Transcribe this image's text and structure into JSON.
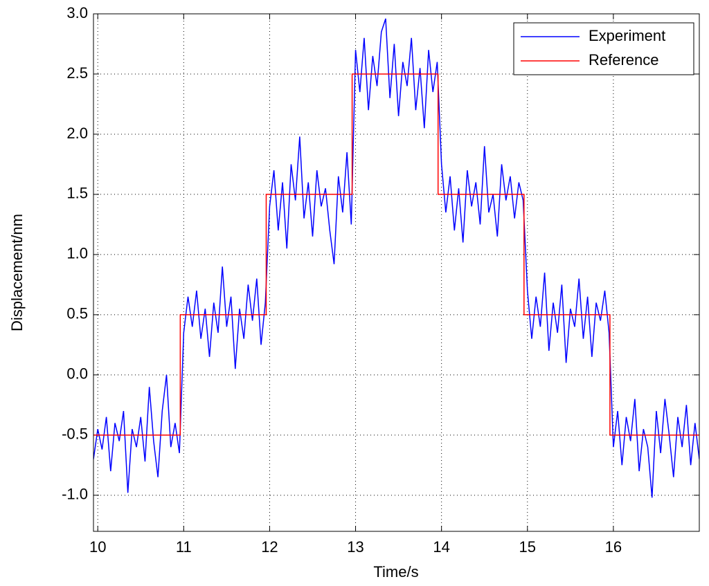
{
  "chart_data": {
    "type": "line",
    "xlabel": "Time/s",
    "ylabel": "Displacement/nm",
    "xlim": [
      9.95,
      17
    ],
    "ylim": [
      -1.3,
      3.0
    ],
    "xticks": [
      10,
      11,
      12,
      13,
      14,
      15,
      16
    ],
    "yticks": [
      {
        "value": -1,
        "label": "-1.0"
      },
      -0.5,
      {
        "value": 0,
        "label": "0.0"
      },
      0.5,
      {
        "value": 1,
        "label": "1.0"
      },
      1.5,
      {
        "value": 2,
        "label": "2.0"
      },
      2.5,
      {
        "value": 3,
        "label": "3.0"
      }
    ],
    "grid": true,
    "legend": "upper right",
    "series": [
      {
        "name": "Experiment",
        "color": "#0000ff",
        "x": [
          9.95,
          10.0,
          10.05,
          10.1,
          10.15,
          10.2,
          10.25,
          10.3,
          10.35,
          10.4,
          10.45,
          10.5,
          10.55,
          10.6,
          10.65,
          10.7,
          10.75,
          10.8,
          10.85,
          10.9,
          10.95,
          11.0,
          11.05,
          11.1,
          11.15,
          11.2,
          11.25,
          11.3,
          11.35,
          11.4,
          11.45,
          11.5,
          11.55,
          11.6,
          11.65,
          11.7,
          11.75,
          11.8,
          11.85,
          11.9,
          11.95,
          12.0,
          12.05,
          12.1,
          12.15,
          12.2,
          12.25,
          12.3,
          12.35,
          12.4,
          12.45,
          12.5,
          12.55,
          12.6,
          12.65,
          12.7,
          12.75,
          12.8,
          12.85,
          12.9,
          12.95,
          13.0,
          13.05,
          13.1,
          13.15,
          13.2,
          13.25,
          13.3,
          13.35,
          13.4,
          13.45,
          13.5,
          13.55,
          13.6,
          13.65,
          13.7,
          13.75,
          13.8,
          13.85,
          13.9,
          13.95,
          14.0,
          14.05,
          14.1,
          14.15,
          14.2,
          14.25,
          14.3,
          14.35,
          14.4,
          14.45,
          14.5,
          14.55,
          14.6,
          14.65,
          14.7,
          14.75,
          14.8,
          14.85,
          14.9,
          14.95,
          15.0,
          15.05,
          15.1,
          15.15,
          15.2,
          15.25,
          15.3,
          15.35,
          15.4,
          15.45,
          15.5,
          15.55,
          15.6,
          15.65,
          15.7,
          15.75,
          15.8,
          15.85,
          15.9,
          15.95,
          16.0,
          16.05,
          16.1,
          16.15,
          16.2,
          16.25,
          16.3,
          16.35,
          16.4,
          16.45,
          16.5,
          16.55,
          16.6,
          16.65,
          16.7,
          16.75,
          16.8,
          16.85,
          16.9,
          16.95,
          17.0
        ],
        "values": [
          -0.7,
          -0.45,
          -0.62,
          -0.35,
          -0.8,
          -0.4,
          -0.55,
          -0.3,
          -0.98,
          -0.45,
          -0.6,
          -0.35,
          -0.72,
          -0.1,
          -0.55,
          -0.85,
          -0.3,
          0.0,
          -0.6,
          -0.4,
          -0.65,
          0.35,
          0.65,
          0.4,
          0.7,
          0.3,
          0.55,
          0.15,
          0.6,
          0.35,
          0.9,
          0.4,
          0.65,
          0.05,
          0.55,
          0.3,
          0.75,
          0.45,
          0.8,
          0.25,
          0.6,
          1.4,
          1.7,
          1.2,
          1.6,
          1.05,
          1.75,
          1.45,
          1.98,
          1.3,
          1.6,
          1.15,
          1.7,
          1.4,
          1.55,
          1.2,
          0.92,
          1.65,
          1.35,
          1.85,
          1.25,
          2.7,
          2.35,
          2.8,
          2.2,
          2.65,
          2.4,
          2.85,
          2.96,
          2.3,
          2.75,
          2.15,
          2.6,
          2.4,
          2.8,
          2.2,
          2.55,
          2.05,
          2.7,
          2.35,
          2.6,
          1.75,
          1.35,
          1.65,
          1.2,
          1.55,
          1.1,
          1.7,
          1.4,
          1.6,
          1.25,
          1.9,
          1.35,
          1.5,
          1.15,
          1.75,
          1.45,
          1.65,
          1.3,
          1.6,
          1.45,
          0.7,
          0.3,
          0.65,
          0.4,
          0.85,
          0.2,
          0.6,
          0.35,
          0.75,
          0.1,
          0.55,
          0.4,
          0.8,
          0.3,
          0.65,
          0.15,
          0.6,
          0.45,
          0.7,
          0.35,
          -0.6,
          -0.3,
          -0.75,
          -0.35,
          -0.55,
          -0.2,
          -0.8,
          -0.45,
          -0.6,
          -1.02,
          -0.3,
          -0.65,
          -0.2,
          -0.5,
          -0.85,
          -0.35,
          -0.6,
          -0.25,
          -0.75,
          -0.4,
          -0.7
        ]
      },
      {
        "name": "Reference",
        "color": "#ff0000",
        "x": [
          9.95,
          10.96,
          10.96,
          11.96,
          11.96,
          12.96,
          12.96,
          13.96,
          13.96,
          14.96,
          14.96,
          15.96,
          15.96,
          17
        ],
        "values": [
          -0.5,
          -0.5,
          0.5,
          0.5,
          1.5,
          1.5,
          2.5,
          2.5,
          1.5,
          1.5,
          0.5,
          0.5,
          -0.5,
          -0.5
        ]
      }
    ]
  }
}
